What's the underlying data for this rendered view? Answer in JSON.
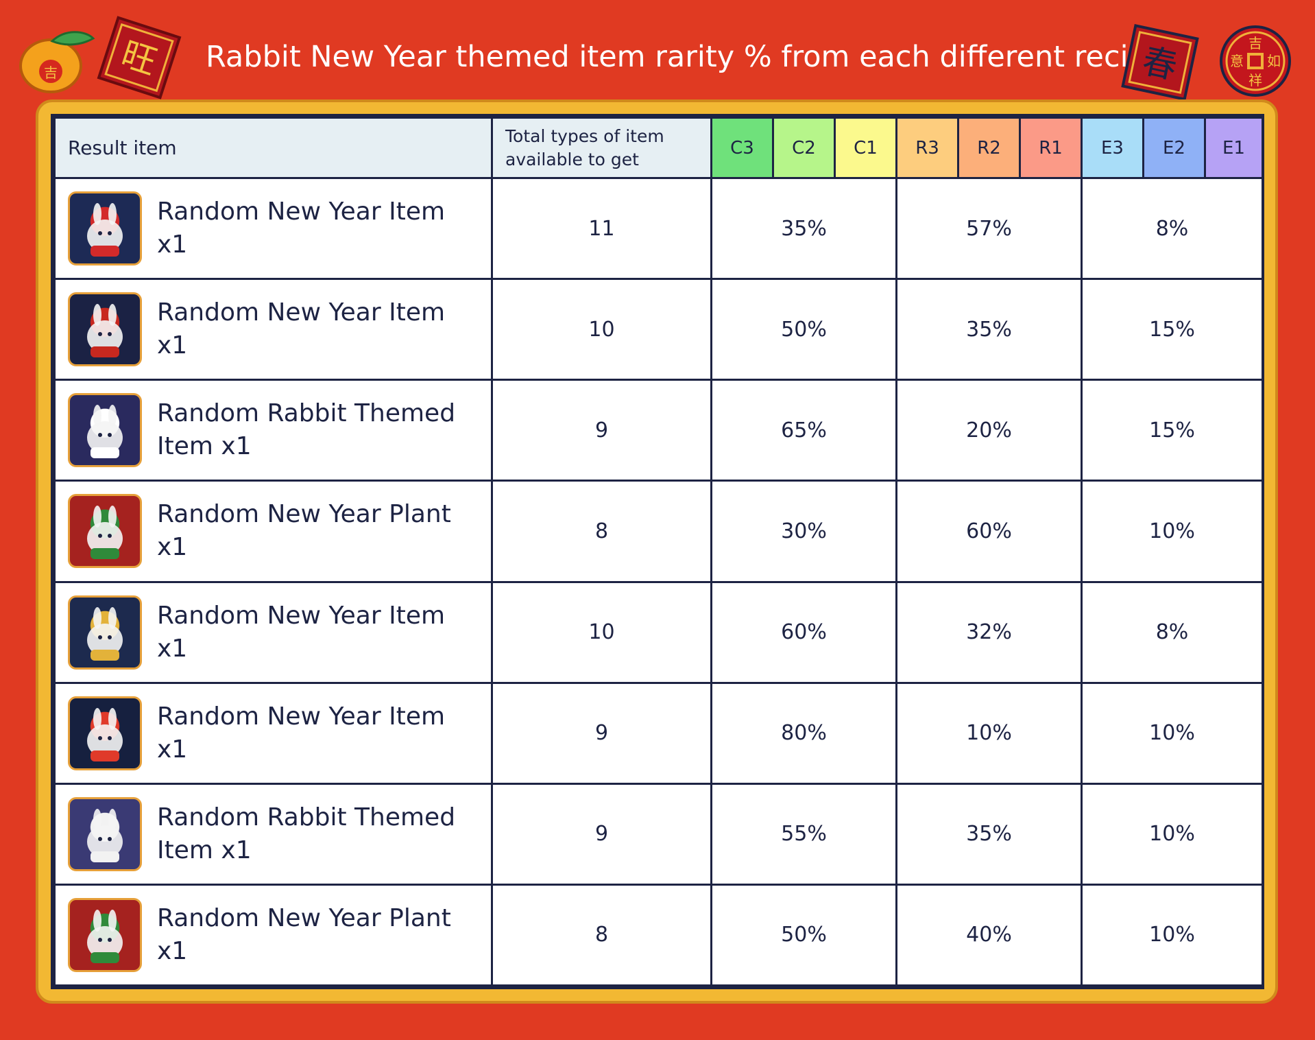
{
  "title": "Rabbit New Year themed item rarity % from each different recipe:",
  "decorations": {
    "left_tag_char": "旺",
    "orange_char": "吉",
    "right_tag_char": "春",
    "coin_chars": [
      "吉",
      "意",
      "如",
      "祥"
    ]
  },
  "table": {
    "headers": {
      "result_item": "Result item",
      "total_types": "Total types of item available to get",
      "rarities": [
        {
          "label": "C3",
          "color": "#6fe17b"
        },
        {
          "label": "C2",
          "color": "#b6f58a"
        },
        {
          "label": "C1",
          "color": "#fbf98d"
        },
        {
          "label": "R3",
          "color": "#fdcd7e"
        },
        {
          "label": "R2",
          "color": "#fcaf7a"
        },
        {
          "label": "R1",
          "color": "#fb9a87"
        },
        {
          "label": "E3",
          "color": "#a9ddf8"
        },
        {
          "label": "E2",
          "color": "#8fb1f6"
        },
        {
          "label": "E1",
          "color": "#b6a2f5"
        }
      ]
    },
    "rows": [
      {
        "item": "Random New Year Item x1",
        "icon": "lion-dance-rabbit-icon",
        "total": "11",
        "common": "35%",
        "rare": "57%",
        "epic": "8%"
      },
      {
        "item": "Random New Year Item x1",
        "icon": "dragon-costume-rabbit-icon",
        "total": "10",
        "common": "50%",
        "rare": "35%",
        "epic": "15%"
      },
      {
        "item": "Random Rabbit Themed Item x1",
        "icon": "rabbit-daruma-icon",
        "total": "9",
        "common": "65%",
        "rare": "20%",
        "epic": "15%"
      },
      {
        "item": "Random New Year Plant x1",
        "icon": "bamboo-plant-icon",
        "total": "8",
        "common": "30%",
        "rare": "60%",
        "epic": "10%"
      },
      {
        "item": "Random New Year Item x1",
        "icon": "golden-lion-rabbit-icon",
        "total": "10",
        "common": "60%",
        "rare": "32%",
        "epic": "8%"
      },
      {
        "item": "Random New Year Item x1",
        "icon": "red-mask-glasses-icon",
        "total": "9",
        "common": "80%",
        "rare": "10%",
        "epic": "10%"
      },
      {
        "item": "Random Rabbit Themed Item x1",
        "icon": "rabbit-hood-daruma-icon",
        "total": "9",
        "common": "55%",
        "rare": "35%",
        "epic": "10%"
      },
      {
        "item": "Random New Year Plant x1",
        "icon": "firecracker-plant-icon",
        "total": "8",
        "common": "50%",
        "rare": "40%",
        "epic": "10%"
      }
    ]
  }
}
